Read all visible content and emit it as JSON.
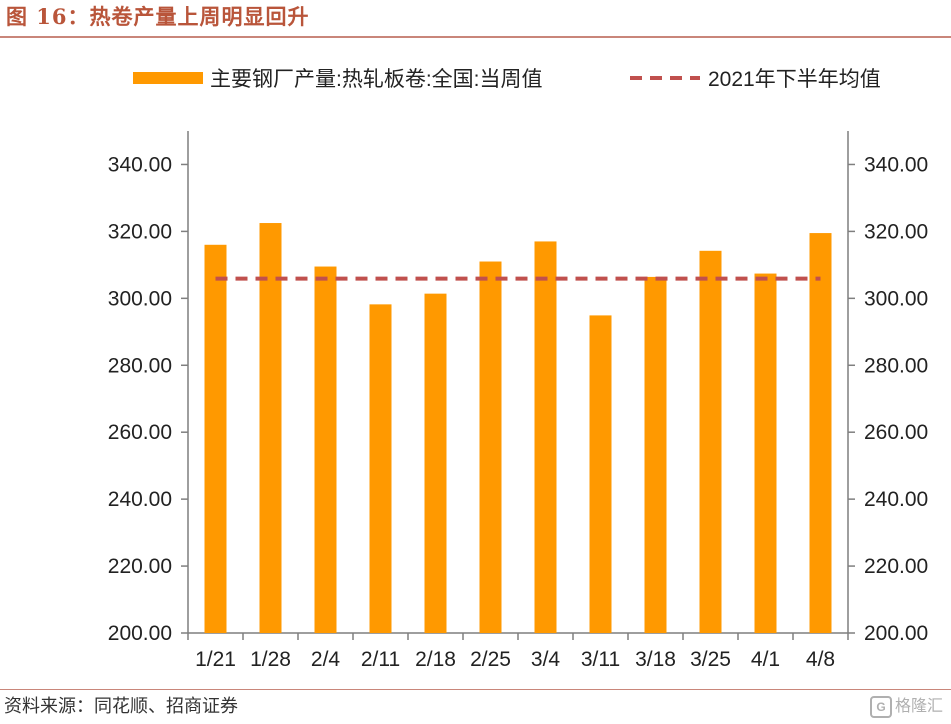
{
  "header": {
    "title": "图 16：热卷产量上周明显回升"
  },
  "footer": {
    "source": "资料来源：同花顺、招商证券",
    "watermark_text": "格隆汇",
    "watermark_icon": "G"
  },
  "colors": {
    "bar": "#ff9900",
    "avg_line": "#c0504d",
    "axis": "#7f7f7f",
    "title": "#b9553a"
  },
  "chart_data": {
    "type": "bar",
    "title": "热卷产量上周明显回升",
    "categories": [
      "1/21",
      "1/28",
      "2/4",
      "2/11",
      "2/18",
      "2/25",
      "3/4",
      "3/11",
      "3/18",
      "3/25",
      "4/1",
      "4/8"
    ],
    "series": [
      {
        "name": "主要钢厂产量:热轧板卷:全国:当周值",
        "type": "bar",
        "values": [
          316.0,
          322.5,
          309.5,
          298.2,
          301.4,
          311.0,
          317.0,
          294.9,
          306.4,
          314.2,
          307.4,
          319.5
        ]
      },
      {
        "name": "2021年下半年均值",
        "type": "dashed-line",
        "values": [
          305.9,
          305.9,
          305.9,
          305.9,
          305.9,
          305.9,
          305.9,
          305.9,
          305.9,
          305.9,
          305.9,
          305.9
        ]
      }
    ],
    "ylim": [
      200,
      340
    ],
    "yticks": [
      "200.00",
      "220.00",
      "240.00",
      "260.00",
      "280.00",
      "300.00",
      "320.00",
      "340.00"
    ],
    "ytick_values": [
      200,
      220,
      240,
      260,
      280,
      300,
      320,
      340
    ],
    "secondary_yticks": [
      "200.00",
      "220.00",
      "240.00",
      "260.00",
      "280.00",
      "300.00",
      "320.00",
      "340.00"
    ],
    "legend_position": "top",
    "grid": false
  }
}
